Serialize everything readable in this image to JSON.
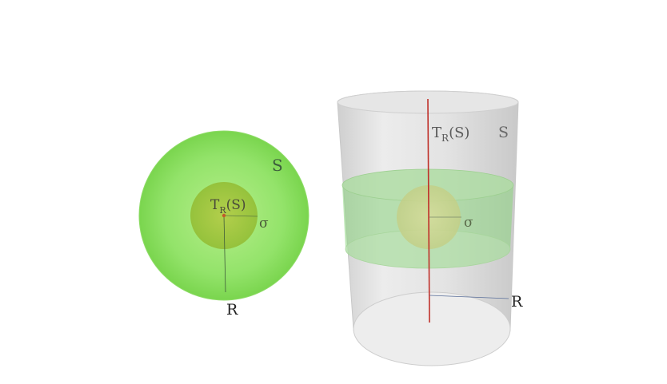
{
  "left_figure": {
    "outer_label": "S",
    "inner_label_main": "T",
    "inner_label_sub": "R",
    "inner_label_arg": "(S)",
    "radius_label": "σ",
    "axis_label": "R",
    "outer_color": "#7ed85a",
    "inner_color": "#a4c63a"
  },
  "right_figure": {
    "cylinder_label": "S",
    "inner_label_main": "T",
    "inner_label_sub": "R",
    "inner_label_arg": "(S)",
    "radius_label": "σ",
    "axis_label": "R",
    "cylinder_color": "#d8d8d8",
    "band_color": "#6fcf6a",
    "axis_color": "#c0302a"
  }
}
